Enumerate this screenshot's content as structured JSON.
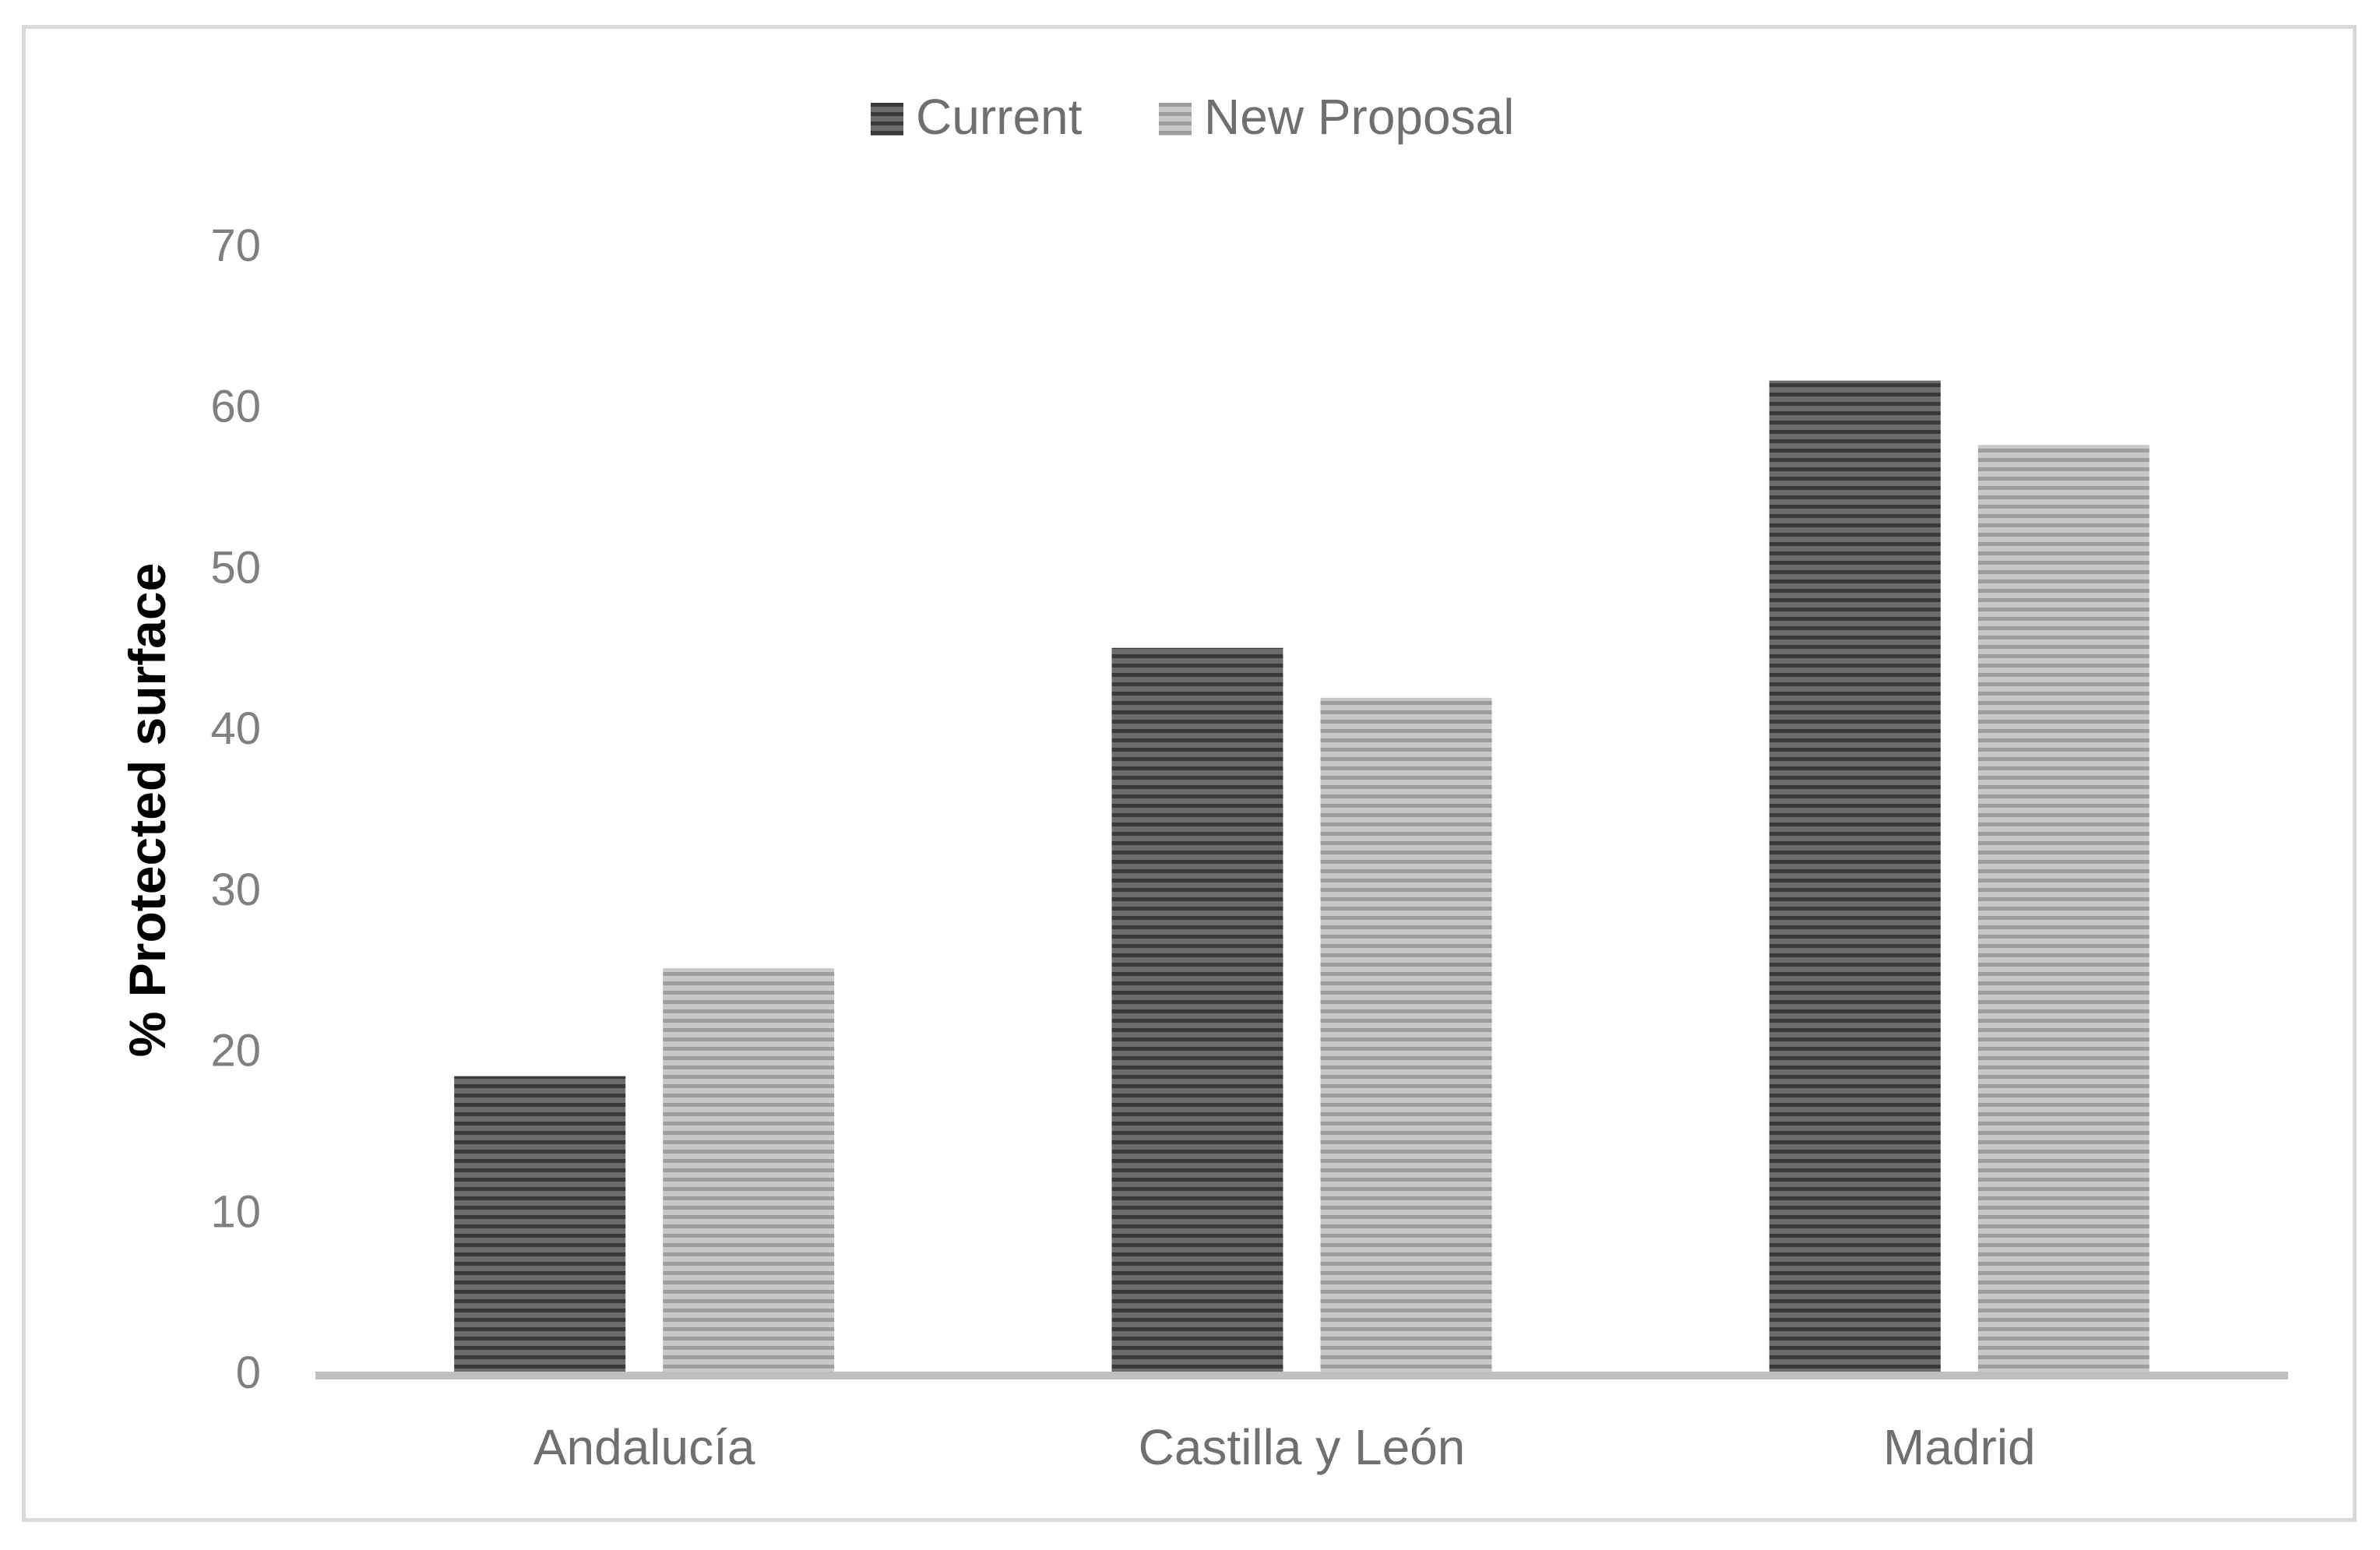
{
  "chart_data": {
    "type": "bar",
    "title": "",
    "xlabel": "",
    "ylabel": "% Protected surface",
    "categories": [
      "Andalucía",
      "Castilla y León",
      "Madrid"
    ],
    "series": [
      {
        "name": "Current",
        "values": [
          18.4,
          45.0,
          61.6
        ],
        "color": "#6b6b6b",
        "stripe": "#3a3a3a"
      },
      {
        "name": "New Proposal",
        "values": [
          25.1,
          41.9,
          57.6
        ],
        "color": "#c8c8c8",
        "stripe": "#9d9d9d"
      }
    ],
    "ylim": [
      0,
      70
    ],
    "yticks": [
      "0",
      "10",
      "20",
      "30",
      "40",
      "50",
      "60",
      "70"
    ],
    "grid": false,
    "legend_position": "top-center",
    "axis_color": "#bfbfbf"
  }
}
